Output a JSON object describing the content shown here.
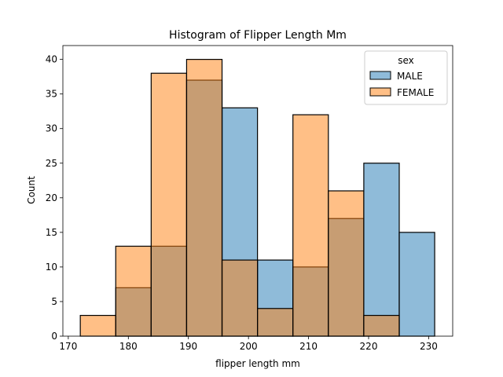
{
  "chart_data": {
    "type": "histogram",
    "title": "Histogram of Flipper Length Mm",
    "xlabel": "flipper length mm",
    "ylabel": "Count",
    "xlim": [
      169.1,
      234.0
    ],
    "ylim": [
      0,
      42
    ],
    "x_ticks": [
      170,
      180,
      190,
      200,
      210,
      220,
      230
    ],
    "y_ticks": [
      0,
      5,
      10,
      15,
      20,
      25,
      30,
      35,
      40
    ],
    "bin_edges": [
      172.0,
      177.9,
      183.8,
      189.7,
      195.6,
      201.5,
      207.4,
      213.3,
      219.2,
      225.1,
      231.0
    ],
    "legend": {
      "title": "sex",
      "position": "upper right"
    },
    "series": [
      {
        "name": "MALE",
        "color": "#1f77b4",
        "values": [
          0,
          7,
          13,
          37,
          33,
          11,
          10,
          17,
          25,
          15
        ]
      },
      {
        "name": "FEMALE",
        "color": "#ff7f0e",
        "values": [
          3,
          13,
          38,
          40,
          11,
          4,
          32,
          21,
          3,
          0
        ]
      }
    ]
  }
}
